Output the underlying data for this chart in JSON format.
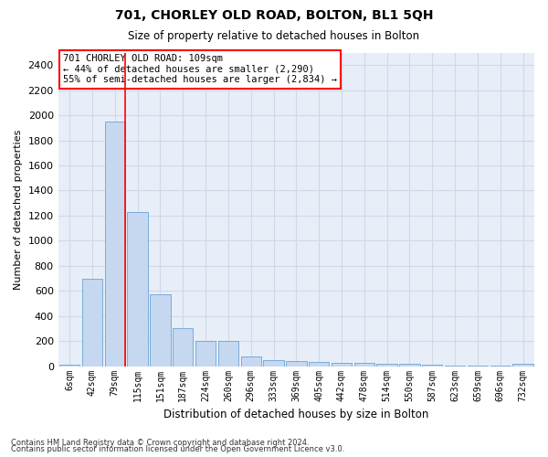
{
  "title": "701, CHORLEY OLD ROAD, BOLTON, BL1 5QH",
  "subtitle": "Size of property relative to detached houses in Bolton",
  "xlabel": "Distribution of detached houses by size in Bolton",
  "ylabel": "Number of detached properties",
  "footer_line1": "Contains HM Land Registry data © Crown copyright and database right 2024.",
  "footer_line2": "Contains public sector information licensed under the Open Government Licence v3.0.",
  "annotation_title": "701 CHORLEY OLD ROAD: 109sqm",
  "annotation_line1": "← 44% of detached houses are smaller (2,290)",
  "annotation_line2": "55% of semi-detached houses are larger (2,834) →",
  "bar_labels": [
    "6sqm",
    "42sqm",
    "79sqm",
    "115sqm",
    "151sqm",
    "187sqm",
    "224sqm",
    "260sqm",
    "296sqm",
    "333sqm",
    "369sqm",
    "405sqm",
    "442sqm",
    "478sqm",
    "514sqm",
    "550sqm",
    "587sqm",
    "623sqm",
    "659sqm",
    "696sqm",
    "732sqm"
  ],
  "bar_values": [
    15,
    700,
    1950,
    1230,
    570,
    305,
    200,
    200,
    80,
    45,
    38,
    35,
    30,
    25,
    20,
    20,
    15,
    5,
    5,
    5,
    20
  ],
  "bar_color": "#c5d8f0",
  "bar_edge_color": "#6ba3d6",
  "grid_color": "#d0d8e8",
  "background_color": "#e8eef8",
  "vline_color": "red",
  "annotation_box_color": "red",
  "ylim": [
    0,
    2500
  ],
  "yticks": [
    0,
    200,
    400,
    600,
    800,
    1000,
    1200,
    1400,
    1600,
    1800,
    2000,
    2200,
    2400
  ]
}
